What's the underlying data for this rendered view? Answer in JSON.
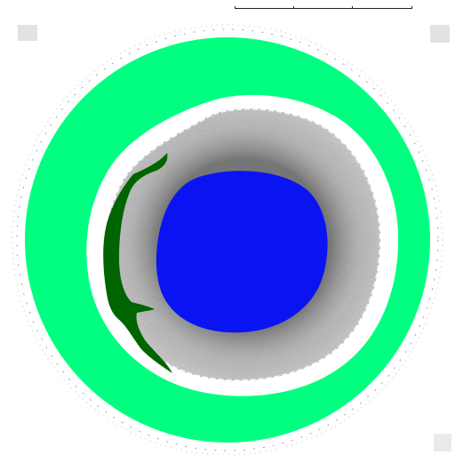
{
  "header": {
    "left_text": "",
    "right_text": ""
  },
  "scale": {
    "tick_labels": [
      "",
      "",
      "",
      ""
    ]
  },
  "colors": {
    "background": "#ffffff",
    "outer_ring": "#00ff80",
    "tissue_dark": "#6b6b6b",
    "tissue_light": "#cfcfcf",
    "lumen": "#0a14f2",
    "lesion": "#006400"
  },
  "segments": [
    {
      "name": "outer-ring",
      "color": "#00ff80"
    },
    {
      "name": "lumen",
      "color": "#0a14f2"
    },
    {
      "name": "lesion",
      "color": "#006400"
    }
  ]
}
